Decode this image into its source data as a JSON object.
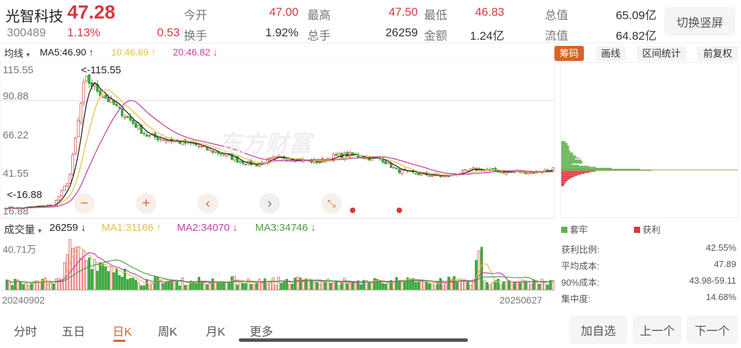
{
  "header": {
    "name": "光智科技",
    "price": "47.28",
    "code": "300489",
    "pct": "1.13%",
    "change": "0.53",
    "stats": [
      {
        "label": "今开",
        "value": "47.00",
        "red": true
      },
      {
        "label": "最高",
        "value": "47.50",
        "red": true
      },
      {
        "label": "最低",
        "value": "46.83",
        "red": true
      },
      {
        "label": "总值",
        "value": "65.09亿",
        "red": false
      },
      {
        "label": "换手",
        "value": "1.92%",
        "red": false
      },
      {
        "label": "总手",
        "value": "26259",
        "red": false
      },
      {
        "label": "金额",
        "value": "1.24亿",
        "red": false
      },
      {
        "label": "流值",
        "value": "64.82亿",
        "red": false
      }
    ],
    "switch_label": "切换竖屏"
  },
  "ma_bar": {
    "selector": "均线",
    "ma5": "MA5:46.90",
    "ma10": "10:46.69",
    "ma20": "20:46.82",
    "tools": [
      "筹码",
      "画线",
      "区间统计",
      "前复权"
    ]
  },
  "chart": {
    "y_ticks": [
      "115.55",
      "90.88",
      "66.22",
      "41.55",
      "16.88"
    ],
    "high_marker": "<-115.55",
    "low_marker": "<-16.88",
    "watermark": "东方财富",
    "colors": {
      "up": "#e0403f",
      "down": "#3aa53a",
      "ma5": "#222222",
      "ma10": "#e6c046",
      "ma20": "#c23fa8"
    }
  },
  "chart_data": {
    "type": "candlestick",
    "y_range": [
      16.88,
      115.55
    ],
    "start": "20240902",
    "end": "20250627",
    "approx_close_trend": [
      20,
      20,
      21,
      22,
      40,
      110,
      100,
      90,
      80,
      70,
      68,
      66,
      64,
      60,
      57,
      52,
      50,
      54,
      55,
      53,
      52,
      56,
      57,
      55,
      54,
      46,
      44,
      43,
      42,
      44,
      47,
      46,
      45,
      45,
      45,
      47.28
    ]
  },
  "volume": {
    "selector": "成交量",
    "value": "26259",
    "ma1": "MA1:31166",
    "ma2": "MA2:34070",
    "ma3": "MA3:34746",
    "max_label": "40.71万",
    "start_date": "20240902",
    "end_date": "20250627"
  },
  "chips": {
    "legend_trapped": "套牢",
    "legend_profit": "获利",
    "stats": [
      {
        "label": "获利比例:",
        "value": "42.55%"
      },
      {
        "label": "平均成本:",
        "value": "47.89"
      },
      {
        "label": "90%成本:",
        "value": "43.98-59.11"
      },
      {
        "label": "集中度:",
        "value": "14.68%"
      }
    ]
  },
  "bottom_tabs": [
    "分时",
    "五日",
    "日K",
    "周K",
    "月K",
    "更多"
  ],
  "active_tab": "日K",
  "actions": [
    "加自选",
    "上一个",
    "下一个"
  ]
}
